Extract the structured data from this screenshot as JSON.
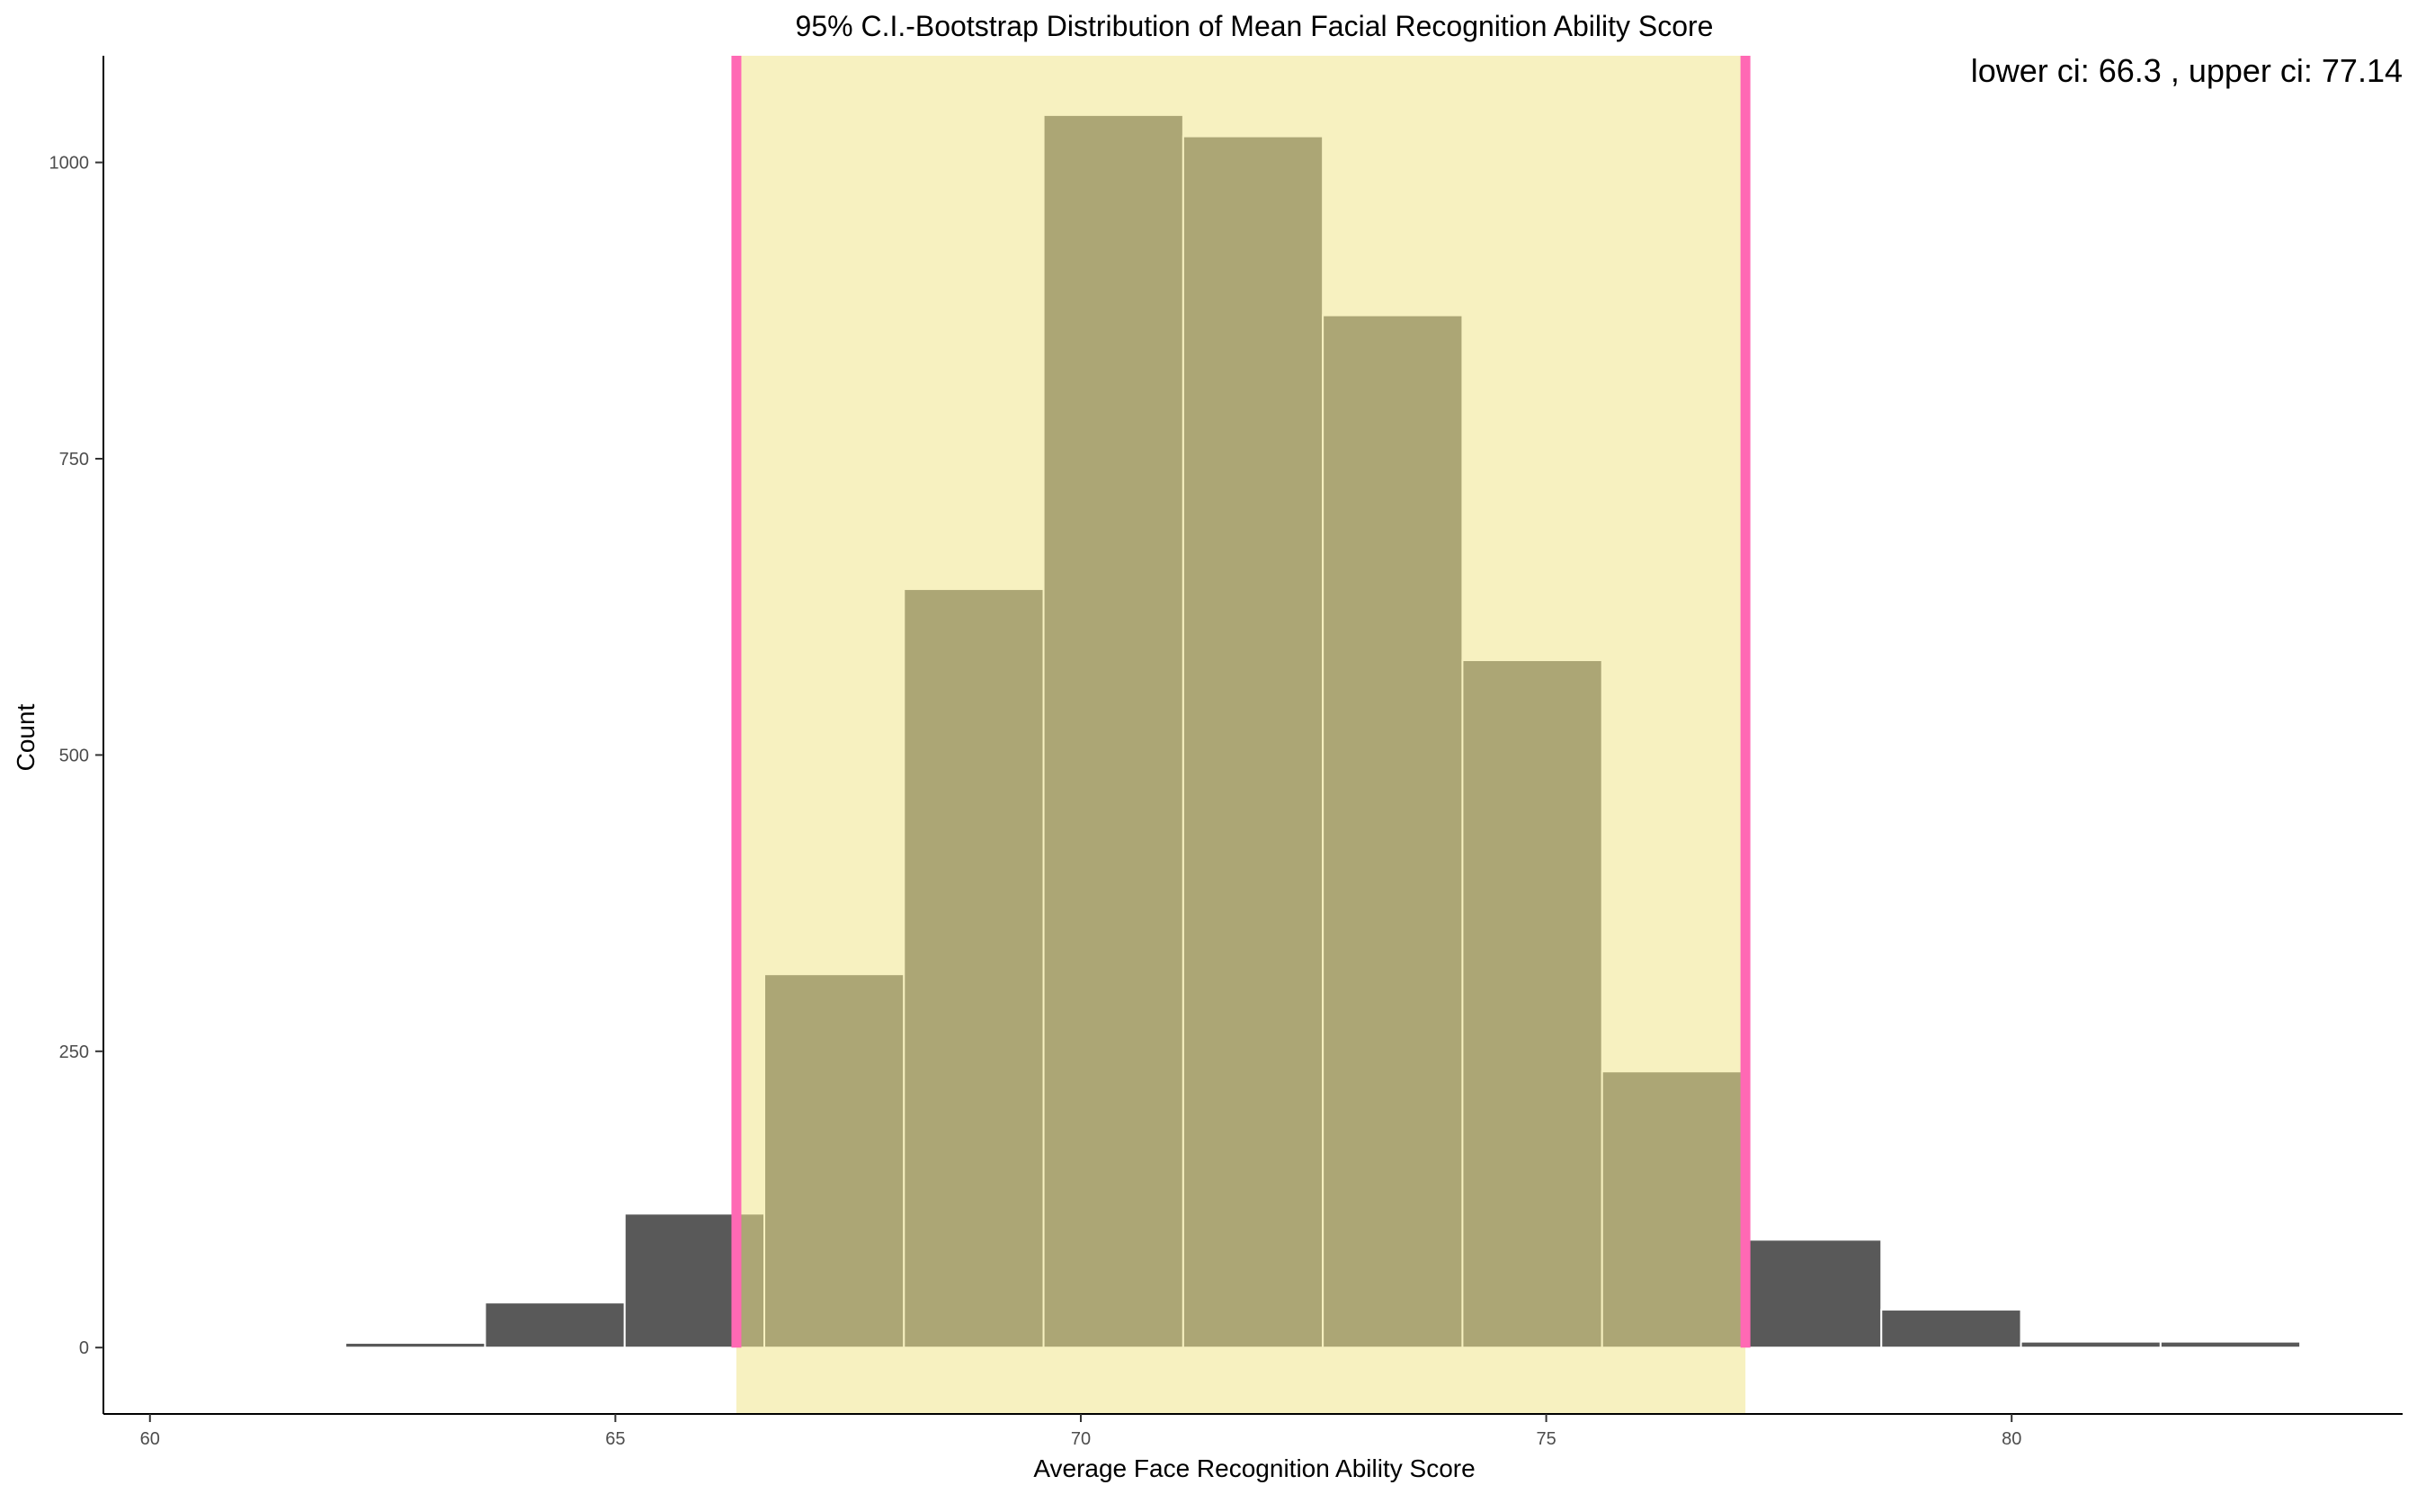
{
  "chart_data": {
    "type": "bar",
    "title": "95% C.I.-Bootstrap Distribution of Mean Facial Recognition Ability Score",
    "xlabel": "Average Face Recognition Ability Score",
    "ylabel": "Count",
    "xlim": [
      59.5,
      84.2
    ],
    "ylim": [
      -56,
      1090
    ],
    "x_ticks": [
      60,
      65,
      70,
      75,
      80
    ],
    "x_tick_labels": [
      "60",
      "65",
      "70",
      "75",
      "80"
    ],
    "y_ticks": [
      0,
      250,
      500,
      750,
      1000
    ],
    "y_tick_labels": [
      "0",
      "250",
      "500",
      "750",
      "1000"
    ],
    "bins": [
      {
        "x0": 60.6,
        "x1": 62.1,
        "count": 1
      },
      {
        "x0": 62.1,
        "x1": 63.6,
        "count": 4
      },
      {
        "x0": 63.6,
        "x1": 65.1,
        "count": 38
      },
      {
        "x0": 65.1,
        "x1": 66.6,
        "count": 113
      },
      {
        "x0": 66.6,
        "x1": 68.1,
        "count": 315
      },
      {
        "x0": 68.1,
        "x1": 69.6,
        "count": 640
      },
      {
        "x0": 69.6,
        "x1": 71.1,
        "count": 1040
      },
      {
        "x0": 71.1,
        "x1": 72.6,
        "count": 1022
      },
      {
        "x0": 72.6,
        "x1": 74.1,
        "count": 871
      },
      {
        "x0": 74.1,
        "x1": 75.6,
        "count": 580
      },
      {
        "x0": 75.6,
        "x1": 77.1,
        "count": 233
      },
      {
        "x0": 77.1,
        "x1": 78.6,
        "count": 91
      },
      {
        "x0": 78.6,
        "x1": 80.1,
        "count": 32
      },
      {
        "x0": 80.1,
        "x1": 81.6,
        "count": 5
      },
      {
        "x0": 81.6,
        "x1": 83.1,
        "count": 5
      }
    ],
    "ci": {
      "lower": 66.3,
      "upper": 77.14
    },
    "annotation": "lower ci: 66.3 , upper ci: 77.14",
    "colors": {
      "bar": "#595959",
      "bar_outline": "#ffffff",
      "ci_band": "#f0e68c",
      "ci_band_opacity": 0.55,
      "ci_line": "#ff69b4",
      "axis": "#000000",
      "tick_label": "#4d4d4d"
    },
    "grid": false
  }
}
